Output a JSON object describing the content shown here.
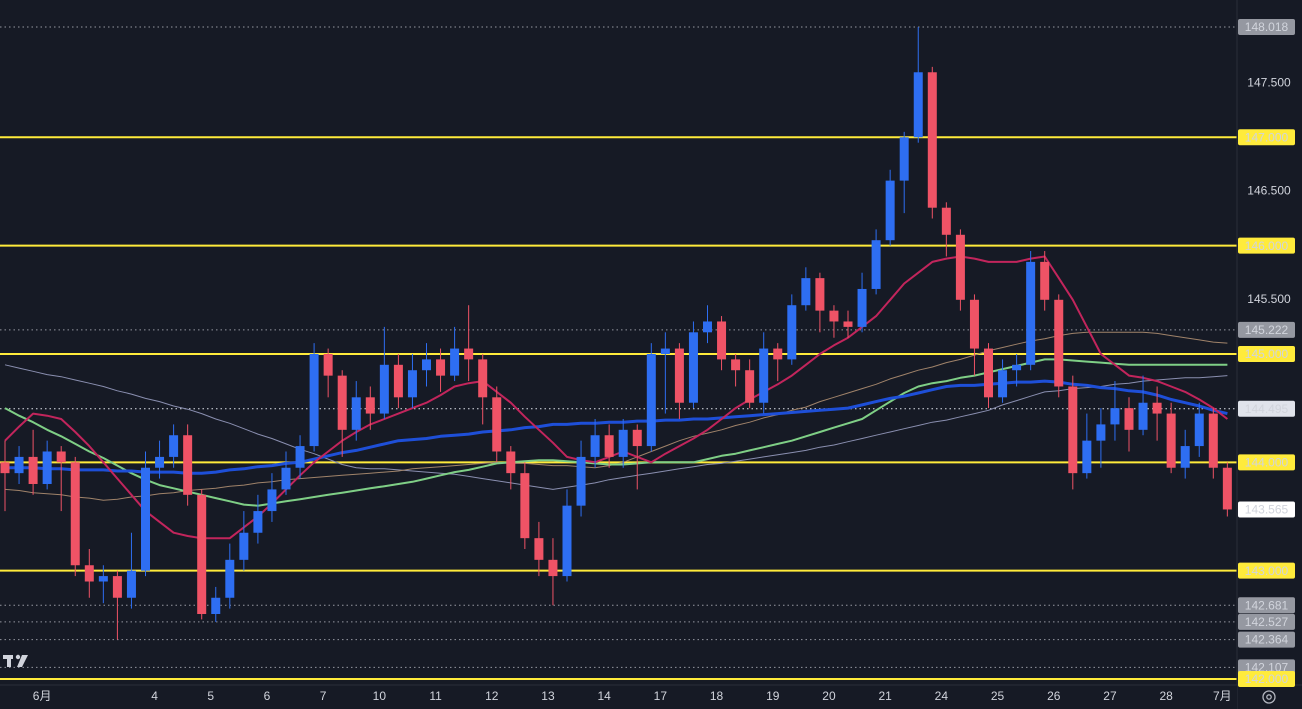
{
  "chart_data": {
    "type": "candlestick",
    "up_color": "#2e6ef2",
    "down_color": "#ef5366",
    "categories": [
      null,
      null,
      null,
      "6月",
      null,
      null,
      null,
      null,
      null,
      null,
      null,
      "4",
      null,
      null,
      null,
      "5",
      null,
      null,
      null,
      "6",
      null,
      null,
      null,
      "7",
      null,
      null,
      null,
      "10",
      null,
      null,
      null,
      "11",
      null,
      null,
      null,
      "12",
      null,
      null,
      null,
      "13",
      null,
      null,
      null,
      "14",
      null,
      null,
      null,
      "17",
      null,
      null,
      null,
      "18",
      null,
      null,
      null,
      "19",
      null,
      null,
      null,
      "20",
      null,
      null,
      null,
      "21",
      null,
      null,
      null,
      "24",
      null,
      null,
      null,
      "25",
      null,
      null,
      null,
      "26",
      null,
      null,
      null,
      "27",
      null,
      null,
      null,
      "28",
      null,
      null,
      null,
      "7月"
    ],
    "open": [
      144.0,
      143.9,
      144.05,
      143.8,
      144.1,
      144.0,
      143.05,
      142.9,
      142.95,
      142.75,
      143.0,
      143.95,
      144.05,
      144.25,
      143.7,
      142.6,
      142.75,
      143.1,
      143.35,
      143.55,
      143.75,
      143.95,
      144.15,
      145.0,
      144.8,
      144.3,
      144.6,
      144.45,
      144.9,
      144.6,
      144.85,
      144.95,
      144.8,
      145.05,
      144.95,
      144.6,
      144.1,
      143.9,
      143.3,
      143.1,
      142.95,
      143.6,
      144.05,
      144.25,
      144.05,
      144.3,
      144.15,
      145.0,
      145.05,
      144.55,
      145.2,
      145.3,
      144.95,
      144.85,
      144.55,
      145.05,
      144.95,
      145.45,
      145.7,
      145.4,
      145.3,
      145.25,
      145.6,
      146.05,
      146.6,
      147.0,
      147.6,
      146.35,
      146.1,
      145.5,
      145.05,
      144.6,
      144.85,
      144.9,
      145.85,
      145.5,
      144.7,
      143.9,
      144.2,
      144.35,
      144.5,
      144.3,
      144.55,
      144.45,
      143.95,
      144.15,
      144.45,
      143.95
    ],
    "high": [
      144.2,
      144.15,
      144.3,
      144.2,
      144.15,
      144.05,
      143.2,
      143.05,
      143.0,
      143.35,
      144.1,
      144.2,
      144.35,
      144.35,
      143.75,
      142.85,
      143.25,
      143.55,
      143.7,
      143.9,
      144.1,
      144.25,
      145.1,
      145.05,
      144.85,
      144.75,
      144.7,
      145.25,
      145.0,
      145.0,
      145.1,
      145.05,
      145.25,
      145.45,
      145.0,
      144.7,
      144.15,
      144.0,
      143.45,
      143.3,
      143.75,
      144.2,
      144.4,
      144.35,
      144.4,
      144.35,
      145.1,
      145.2,
      145.1,
      145.3,
      145.45,
      145.35,
      145.0,
      144.95,
      145.2,
      145.1,
      145.55,
      145.8,
      145.75,
      145.45,
      145.4,
      145.75,
      146.15,
      146.7,
      147.05,
      148.018,
      147.65,
      146.4,
      146.15,
      145.55,
      145.1,
      144.95,
      145.0,
      145.95,
      145.95,
      145.55,
      144.8,
      144.45,
      144.5,
      144.75,
      144.6,
      144.8,
      144.7,
      144.55,
      144.3,
      144.55,
      144.5,
      144.0
    ],
    "low": [
      143.55,
      143.8,
      143.7,
      143.75,
      143.55,
      142.95,
      142.75,
      142.7,
      142.364,
      142.65,
      142.95,
      143.85,
      143.95,
      143.6,
      142.55,
      142.527,
      142.65,
      143.0,
      143.25,
      143.45,
      143.7,
      143.85,
      144.1,
      144.6,
      144.05,
      144.2,
      144.3,
      144.4,
      144.5,
      144.5,
      144.7,
      144.65,
      144.75,
      144.75,
      144.35,
      144.0,
      143.75,
      143.2,
      142.95,
      142.681,
      142.9,
      143.5,
      143.95,
      143.95,
      143.95,
      143.75,
      144.1,
      144.45,
      144.4,
      144.5,
      145.1,
      144.85,
      144.7,
      144.5,
      144.45,
      144.75,
      144.9,
      145.4,
      145.2,
      145.15,
      145.15,
      145.2,
      145.55,
      146.0,
      146.3,
      146.95,
      146.25,
      145.9,
      145.4,
      144.8,
      144.5,
      144.55,
      144.7,
      144.85,
      145.4,
      144.6,
      143.75,
      143.85,
      143.95,
      144.2,
      144.1,
      144.25,
      144.2,
      143.9,
      143.85,
      144.05,
      143.85,
      143.5
    ],
    "close": [
      143.9,
      144.05,
      143.8,
      144.1,
      144.0,
      143.05,
      142.9,
      142.95,
      142.75,
      143.0,
      143.95,
      144.05,
      144.25,
      143.7,
      142.6,
      142.75,
      143.1,
      143.35,
      143.55,
      143.75,
      143.95,
      144.15,
      145.0,
      144.8,
      144.3,
      144.6,
      144.45,
      144.9,
      144.6,
      144.85,
      144.95,
      144.8,
      145.05,
      144.95,
      144.6,
      144.1,
      143.9,
      143.3,
      143.1,
      142.95,
      143.6,
      144.05,
      144.25,
      144.05,
      144.3,
      144.15,
      145.0,
      145.05,
      144.55,
      145.2,
      145.3,
      144.95,
      144.85,
      144.55,
      145.05,
      144.95,
      145.45,
      145.7,
      145.4,
      145.3,
      145.25,
      145.6,
      146.05,
      146.6,
      147.0,
      147.6,
      146.35,
      146.1,
      145.5,
      145.05,
      144.6,
      144.85,
      144.9,
      145.85,
      145.5,
      144.7,
      143.9,
      144.2,
      144.35,
      144.5,
      144.3,
      144.55,
      144.45,
      143.95,
      144.15,
      144.45,
      143.95,
      143.565
    ],
    "series": [
      {
        "color": "#8a8fb0",
        "width": 1,
        "values": [
          144.9,
          144.87,
          144.84,
          144.81,
          144.79,
          144.76,
          144.73,
          144.7,
          144.66,
          144.63,
          144.59,
          144.56,
          144.52,
          144.49,
          144.45,
          144.4,
          144.36,
          144.31,
          144.26,
          144.22,
          144.17,
          144.12,
          144.08,
          144.03,
          143.98,
          143.95,
          143.94,
          143.94,
          143.93,
          143.92,
          143.91,
          143.9,
          143.89,
          143.87,
          143.85,
          143.83,
          143.81,
          143.79,
          143.77,
          143.75,
          143.77,
          143.79,
          143.81,
          143.84,
          143.86,
          143.88,
          143.9,
          143.92,
          143.94,
          143.96,
          143.98,
          143.99,
          144.01,
          144.03,
          144.05,
          144.07,
          144.09,
          144.11,
          144.14,
          144.16,
          144.19,
          144.22,
          144.25,
          144.28,
          144.31,
          144.34,
          144.37,
          144.39,
          144.42,
          144.45,
          144.48,
          144.53,
          144.57,
          144.61,
          144.65,
          144.66,
          144.68,
          144.69,
          144.7,
          144.72,
          144.73,
          144.75,
          144.76,
          144.77,
          144.78,
          144.78,
          144.79,
          144.8
        ]
      },
      {
        "color": "#a0836a",
        "width": 1,
        "values": [
          143.75,
          143.74,
          143.72,
          143.71,
          143.7,
          143.68,
          143.67,
          143.65,
          143.66,
          143.68,
          143.69,
          143.71,
          143.72,
          143.74,
          143.75,
          143.76,
          143.78,
          143.79,
          143.81,
          143.82,
          143.84,
          143.85,
          143.86,
          143.87,
          143.88,
          143.89,
          143.9,
          143.91,
          143.92,
          143.94,
          143.95,
          143.96,
          143.97,
          143.98,
          143.99,
          144.0,
          143.99,
          143.99,
          143.98,
          143.97,
          143.97,
          143.96,
          143.95,
          143.97,
          144.0,
          144.05,
          144.1,
          144.15,
          144.2,
          144.24,
          144.27,
          144.3,
          144.34,
          144.37,
          144.41,
          144.44,
          144.48,
          144.51,
          144.56,
          144.6,
          144.64,
          144.68,
          144.72,
          144.77,
          144.81,
          144.85,
          144.88,
          144.92,
          144.95,
          144.99,
          145.03,
          145.06,
          145.09,
          145.12,
          145.14,
          145.17,
          145.19,
          145.2,
          145.2,
          145.2,
          145.2,
          145.2,
          145.19,
          145.17,
          145.15,
          145.13,
          145.11,
          145.1
        ]
      },
      {
        "color": "#7fcf86",
        "width": 2,
        "values": [
          144.5,
          144.43,
          144.37,
          144.3,
          144.24,
          144.17,
          144.1,
          144.04,
          143.97,
          143.9,
          143.84,
          143.79,
          143.76,
          143.73,
          143.7,
          143.67,
          143.64,
          143.61,
          143.6,
          143.62,
          143.64,
          143.66,
          143.68,
          143.7,
          143.72,
          143.74,
          143.76,
          143.78,
          143.8,
          143.82,
          143.85,
          143.88,
          143.91,
          143.93,
          143.96,
          143.99,
          144.0,
          144.01,
          144.02,
          144.02,
          144.01,
          144.0,
          143.99,
          143.98,
          143.98,
          143.99,
          144.0,
          144.0,
          144.0,
          144.0,
          144.03,
          144.06,
          144.08,
          144.11,
          144.14,
          144.17,
          144.2,
          144.24,
          144.28,
          144.32,
          144.36,
          144.4,
          144.48,
          144.56,
          144.64,
          144.7,
          144.73,
          144.75,
          144.78,
          144.8,
          144.83,
          144.86,
          144.89,
          144.92,
          144.95,
          144.95,
          144.94,
          144.93,
          144.92,
          144.91,
          144.9,
          144.9,
          144.9,
          144.9,
          144.9,
          144.9,
          144.9,
          144.9
        ]
      },
      {
        "color": "#1e4fd8",
        "width": 3,
        "values": [
          143.95,
          143.95,
          143.95,
          143.94,
          143.94,
          143.93,
          143.93,
          143.93,
          143.92,
          143.92,
          143.91,
          143.91,
          143.91,
          143.9,
          143.9,
          143.91,
          143.93,
          143.94,
          143.96,
          143.97,
          143.99,
          144.0,
          144.03,
          144.06,
          144.09,
          144.11,
          144.14,
          144.17,
          144.2,
          144.21,
          144.22,
          144.24,
          144.25,
          144.26,
          144.28,
          144.29,
          144.3,
          144.32,
          144.33,
          144.35,
          144.35,
          144.36,
          144.36,
          144.37,
          144.37,
          144.38,
          144.38,
          144.39,
          144.39,
          144.4,
          144.4,
          144.41,
          144.42,
          144.43,
          144.44,
          144.45,
          144.46,
          144.47,
          144.48,
          144.49,
          144.5,
          144.53,
          144.56,
          144.59,
          144.61,
          144.64,
          144.67,
          144.7,
          144.71,
          144.71,
          144.72,
          144.73,
          144.74,
          144.74,
          144.75,
          144.74,
          144.72,
          144.71,
          144.69,
          144.68,
          144.66,
          144.65,
          144.62,
          144.58,
          144.55,
          144.52,
          144.48,
          144.45
        ]
      },
      {
        "color": "#c2255c",
        "width": 2,
        "values": [
          144.2,
          144.33,
          144.45,
          144.43,
          144.4,
          144.28,
          144.15,
          144.0,
          143.85,
          143.7,
          143.55,
          143.45,
          143.35,
          143.32,
          143.3,
          143.3,
          143.3,
          143.4,
          143.5,
          143.62,
          143.75,
          143.88,
          144.0,
          144.1,
          144.2,
          144.28,
          144.35,
          144.4,
          144.45,
          144.5,
          144.55,
          144.62,
          144.7,
          144.73,
          144.75,
          144.65,
          144.55,
          144.42,
          144.3,
          144.18,
          144.05,
          144.02,
          144.0,
          144.05,
          144.1,
          144.05,
          144.0,
          144.08,
          144.15,
          144.22,
          144.3,
          144.4,
          144.5,
          144.58,
          144.65,
          144.72,
          144.8,
          144.9,
          145.0,
          145.08,
          145.15,
          145.25,
          145.35,
          145.5,
          145.65,
          145.75,
          145.85,
          145.88,
          145.9,
          145.88,
          145.85,
          145.85,
          145.85,
          145.88,
          145.9,
          145.7,
          145.5,
          145.25,
          145.0,
          144.9,
          144.8,
          144.78,
          144.75,
          144.7,
          144.65,
          144.58,
          144.5,
          144.4
        ]
      }
    ],
    "ylim": [
      141.954,
      148.267
    ],
    "yticks": [
      {
        "value": 147.5,
        "label": "147.500"
      },
      {
        "value": 146.5,
        "label": "146.500"
      },
      {
        "value": 145.5,
        "label": "145.500"
      }
    ],
    "hlines": [
      {
        "value": 148.018,
        "label": "148.018",
        "style": "dotted",
        "color": "#9598a1"
      },
      {
        "value": 147,
        "label": "147.000",
        "style": "solid",
        "color": "#ffeb3b"
      },
      {
        "value": 146,
        "label": "146.000",
        "style": "solid",
        "color": "#ffeb3b"
      },
      {
        "value": 145.222,
        "label": "145.222",
        "style": "dotted",
        "color": "#9598a1"
      },
      {
        "value": 145,
        "label": "145.000",
        "style": "solid",
        "color": "#ffeb3b"
      },
      {
        "value": 144.495,
        "label": "144.495",
        "style": "dotted",
        "color": "#e0e3eb"
      },
      {
        "value": 144,
        "label": "144.000",
        "style": "solid",
        "color": "#ffeb3b"
      },
      {
        "value": 143,
        "label": "143.000",
        "style": "solid",
        "color": "#ffeb3b"
      },
      {
        "value": 142.681,
        "label": "142.681",
        "style": "dotted",
        "color": "#9598a1"
      },
      {
        "value": 142.527,
        "label": "142.527",
        "style": "dotted",
        "color": "#9598a1"
      },
      {
        "value": 142.364,
        "label": "142.364",
        "style": "dotted",
        "color": "#9598a1"
      },
      {
        "value": 142.107,
        "label": "142.107",
        "style": "dotted",
        "color": "#9598a1"
      },
      {
        "value": 142,
        "label": "142.000",
        "style": "solid",
        "color": "#ffeb3b"
      }
    ],
    "last_price": {
      "value": 143.565,
      "label": "143.565"
    }
  }
}
